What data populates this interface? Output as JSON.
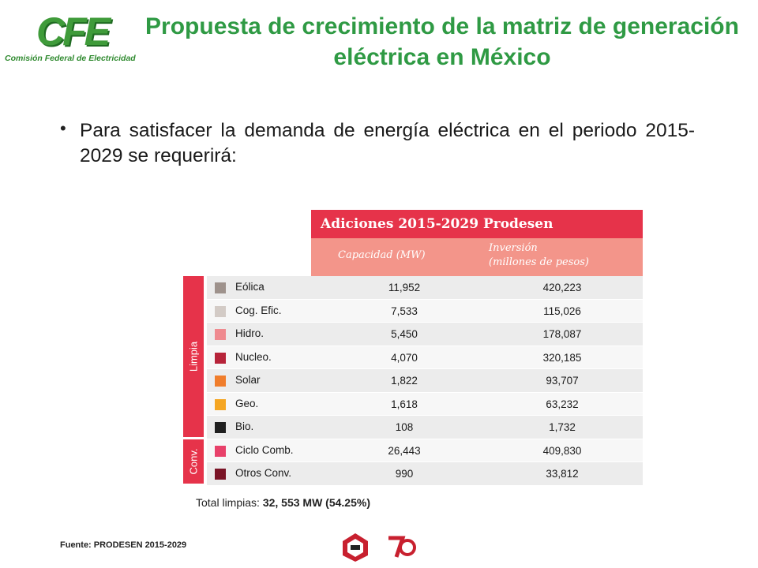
{
  "logo": {
    "mark": "CFE",
    "subtitle": "Comisión Federal de Electricidad"
  },
  "title": "Propuesta de crecimiento de la matriz de generación eléctrica en México",
  "bullet": "Para satisfacer la demanda de energía eléctrica en el periodo 2015- 2029 se requerirá:",
  "table": {
    "header": "Adiciones 2015-2029 Prodesen",
    "col_capacity": "Capacidad (MW)",
    "col_investment_line1": "Inversión",
    "col_investment_line2": "(millones de pesos)",
    "groups": [
      {
        "label": "Limpia",
        "rows": [
          {
            "name": "Eólica",
            "capacity": "11,952",
            "investment": "420,223",
            "color": "#9e928c"
          },
          {
            "name": "Cog. Efic.",
            "capacity": "7,533",
            "investment": "115,026",
            "color": "#d3cbc6"
          },
          {
            "name": "Hidro.",
            "capacity": "5,450",
            "investment": "178,087",
            "color": "#ef8a8f"
          },
          {
            "name": "Nucleo.",
            "capacity": "4,070",
            "investment": "320,185",
            "color": "#b7243a"
          },
          {
            "name": "Solar",
            "capacity": "1,822",
            "investment": "93,707",
            "color": "#f07d2b"
          },
          {
            "name": "Geo.",
            "capacity": "1,618",
            "investment": "63,232",
            "color": "#f5a623"
          },
          {
            "name": "Bio.",
            "capacity": "108",
            "investment": "1,732",
            "color": "#1f1f1f"
          }
        ]
      },
      {
        "label": "Conv.",
        "rows": [
          {
            "name": "Ciclo Comb.",
            "capacity": "26,443",
            "investment": "409,830",
            "color": "#e8416a"
          },
          {
            "name": "Otros Conv.",
            "capacity": "990",
            "investment": "33,812",
            "color": "#7a1426"
          }
        ]
      }
    ]
  },
  "total": {
    "label": "Total limpias:",
    "value": "32, 553 MW (54.25%)"
  },
  "source": "Fuente: PRODESEN 2015-2029",
  "colors": {
    "title_green": "#2f9a44",
    "table_red": "#e6334a",
    "table_salmon": "#f3958a"
  }
}
